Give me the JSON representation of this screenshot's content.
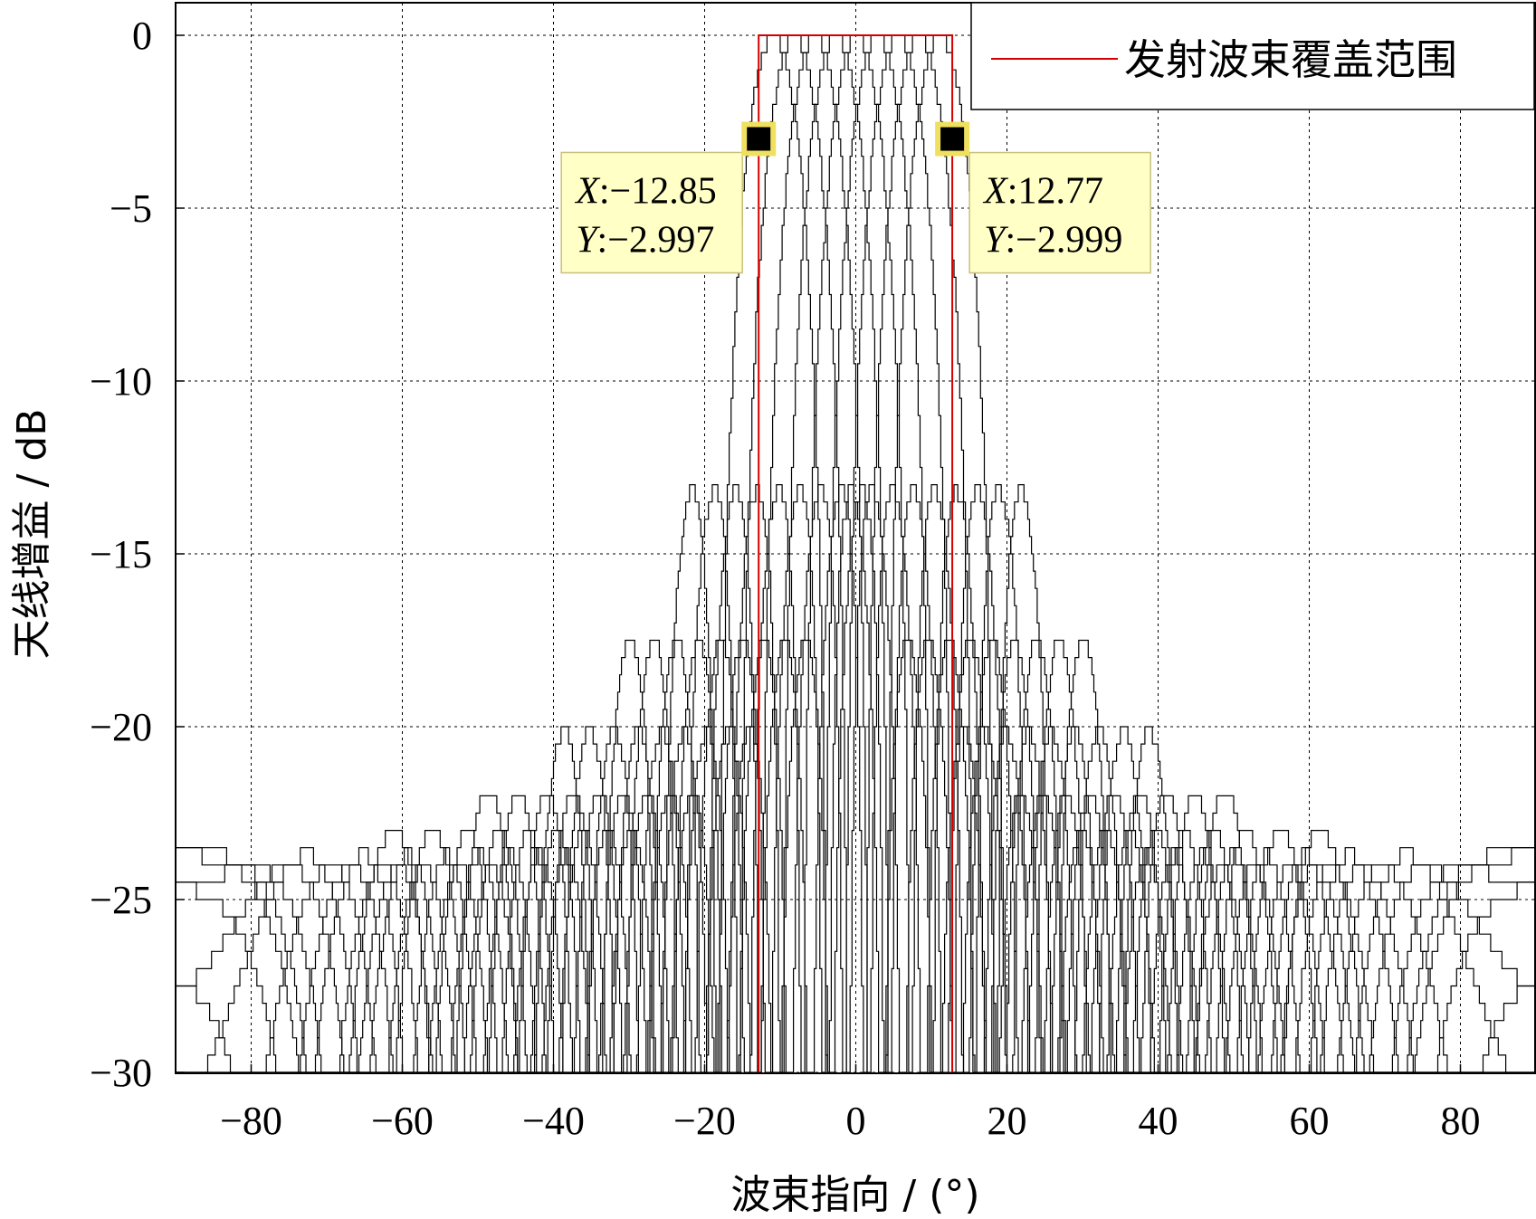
{
  "chart_data": {
    "type": "line",
    "xlabel": "波束指向 / (°)",
    "ylabel": "天线增益 / dB",
    "xlim": [
      -90,
      90
    ],
    "ylim": [
      -30,
      0
    ],
    "xticks": [
      -80,
      -60,
      -40,
      -20,
      0,
      20,
      40,
      60,
      80
    ],
    "xtick_labels": [
      "−80",
      "−60",
      "−40",
      "−20",
      "0",
      "20",
      "40",
      "60",
      "80"
    ],
    "yticks": [
      0,
      -5,
      -10,
      -15,
      -20,
      -25,
      -30
    ],
    "ytick_labels": [
      "0",
      "−5",
      "−10",
      "−15",
      "−20",
      "−25",
      "−30"
    ],
    "grid": true,
    "legend_position": "top-right",
    "colors": {
      "pattern": "#000000",
      "coverage": "#d40000",
      "tip_fill": "#ffffc6",
      "tip_border": "#f0e060"
    },
    "series": [
      {
        "name": "",
        "kind": "beam-patterns",
        "beam_centers": [
          -11,
          -8.25,
          -5.5,
          -2.75,
          0,
          2.75,
          5.5,
          8.25,
          11
        ],
        "peak_value": 0,
        "floor": -30
      },
      {
        "name": "发射波束覆盖范围",
        "kind": "coverage",
        "x": [
          -12.85,
          -12.85,
          12.77,
          12.77
        ],
        "y": [
          -30,
          0,
          0,
          -30
        ]
      }
    ],
    "datatips": [
      {
        "x": -12.85,
        "y": -2.997,
        "line1": "X:−12.85",
        "line2": "Y:−2.997",
        "x_label": "X",
        "x_value": ":−12.85",
        "y_label": "Y",
        "y_value": ":−2.997"
      },
      {
        "x": 12.77,
        "y": -2.999,
        "line1": "X:12.77",
        "line2": "Y:−2.999",
        "x_label": "X",
        "x_value": ":12.77",
        "y_label": "Y",
        "y_value": ":−2.999"
      }
    ]
  }
}
